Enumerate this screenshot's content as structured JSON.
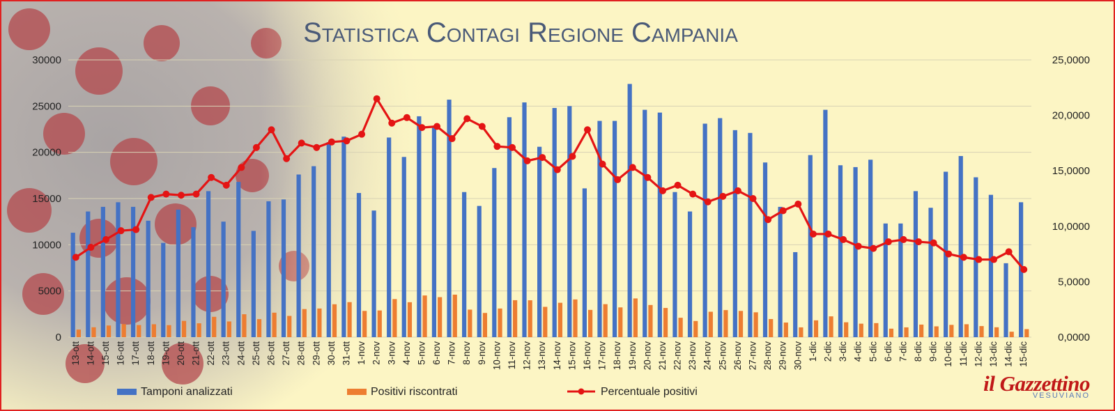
{
  "chart_data": {
    "type": "bar",
    "title": "Statistica Contagi Regione Campania",
    "categories": [
      "13-ott",
      "14-ott",
      "15-ott",
      "16-ott",
      "17-ott",
      "18-ott",
      "19-ott",
      "20-ott",
      "21-ott",
      "22-ott",
      "23-ott",
      "24-ott",
      "25-ott",
      "26-ott",
      "27-ott",
      "28-ott",
      "29-ott",
      "30-ott",
      "31-ott",
      "1-nov",
      "2-nov",
      "3-nov",
      "4-nov",
      "5-nov",
      "6-nov",
      "7-nov",
      "8-nov",
      "9-nov",
      "10-nov",
      "11-nov",
      "12-nov",
      "13-nov",
      "14-nov",
      "15-nov",
      "16-nov",
      "17-nov",
      "18-nov",
      "19-nov",
      "20-nov",
      "21-nov",
      "22-nov",
      "23-nov",
      "24-nov",
      "25-nov",
      "26-nov",
      "27-nov",
      "28-nov",
      "29-nov",
      "30-nov",
      "1-dic",
      "2-dic",
      "3-dic",
      "4-dic",
      "5-dic",
      "6-dic",
      "7-dic",
      "8-dic",
      "9-dic",
      "10-dic",
      "11-dic",
      "12-dic",
      "13-dic",
      "14-dic",
      "15-dic"
    ],
    "series": [
      {
        "name": "Tamponi analizzati",
        "axis": "left",
        "kind": "bar",
        "color": "#4472c4",
        "values": [
          11300,
          13600,
          14100,
          14600,
          14100,
          12600,
          10200,
          13800,
          11900,
          15800,
          12500,
          16800,
          11500,
          14700,
          14900,
          17600,
          18500,
          21100,
          21700,
          15600,
          13700,
          21600,
          19500,
          23900,
          22800,
          25700,
          15700,
          14200,
          18300,
          23800,
          25400,
          20600,
          24800,
          25000,
          16100,
          23400,
          23400,
          27400,
          24600,
          24300,
          15700,
          13600,
          23100,
          23700,
          22400,
          22100,
          18900,
          14100,
          9200,
          19700,
          24600,
          18600,
          18400,
          19200,
          12300,
          12300,
          15800,
          14000,
          17900,
          19600,
          17300,
          15400,
          8000,
          14600
        ]
      },
      {
        "name": "Positivi riscontrati",
        "axis": "left",
        "kind": "bar",
        "color": "#ed7d31",
        "values": [
          820,
          1070,
          1260,
          1410,
          1310,
          1400,
          1300,
          1760,
          1500,
          2200,
          1700,
          2480,
          1950,
          2650,
          2300,
          3040,
          3100,
          3560,
          3790,
          2840,
          2890,
          4120,
          3780,
          4510,
          4330,
          4600,
          2980,
          2620,
          3100,
          4000,
          3990,
          3280,
          3720,
          4080,
          2950,
          3570,
          3220,
          4190,
          3480,
          3160,
          2100,
          1750,
          2750,
          2930,
          2840,
          2690,
          1960,
          1580,
          1060,
          1820,
          2250,
          1610,
          1460,
          1520,
          920,
          1060,
          1360,
          1170,
          1330,
          1400,
          1200,
          1070,
          590,
          870
        ]
      },
      {
        "name": "Percentuale positivi",
        "axis": "right",
        "kind": "line",
        "color": "#e41414",
        "values": [
          7.2,
          8.1,
          8.8,
          9.6,
          9.7,
          12.6,
          12.9,
          12.8,
          12.9,
          14.4,
          13.7,
          15.3,
          17.1,
          18.7,
          16.1,
          17.5,
          17.1,
          17.6,
          17.7,
          18.3,
          21.5,
          19.3,
          19.8,
          18.9,
          19.0,
          17.9,
          19.7,
          19.0,
          17.2,
          17.1,
          15.9,
          16.2,
          15.1,
          16.3,
          18.7,
          15.6,
          14.2,
          15.3,
          14.4,
          13.2,
          13.7,
          12.9,
          12.2,
          12.7,
          13.2,
          12.5,
          10.6,
          11.4,
          12.0,
          9.3,
          9.3,
          8.8,
          8.2,
          8.0,
          8.6,
          8.8,
          8.6,
          8.5,
          7.5,
          7.2,
          7.0,
          7.0,
          7.7,
          6.1
        ]
      }
    ],
    "y_left": {
      "min": 0,
      "max": 30000,
      "ticks": [
        "0",
        "5000",
        "10000",
        "15000",
        "20000",
        "25000",
        "30000"
      ]
    },
    "y_right": {
      "min": 0,
      "max": 25,
      "ticks": [
        "0,0000",
        "5,0000",
        "10,0000",
        "15,0000",
        "20,0000",
        "25,0000"
      ]
    },
    "grid": true,
    "legend": "bottom"
  },
  "logo": {
    "main": "il Gazzettino",
    "sub": "VESUVIANO"
  },
  "colors": {
    "background": "#fcf5c4",
    "border": "#e02020",
    "title": "#4a5a78",
    "grid": "#d8d2b4"
  }
}
